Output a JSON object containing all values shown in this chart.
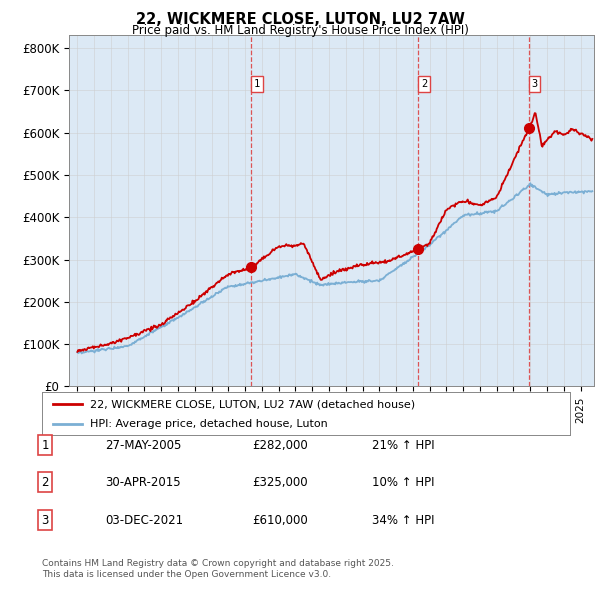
{
  "title": "22, WICKMERE CLOSE, LUTON, LU2 7AW",
  "subtitle": "Price paid vs. HM Land Registry's House Price Index (HPI)",
  "plot_bg_color": "#dce9f5",
  "ylabel_ticks": [
    "£0",
    "£100K",
    "£200K",
    "£300K",
    "£400K",
    "£500K",
    "£600K",
    "£700K",
    "£800K"
  ],
  "ytick_values": [
    0,
    100000,
    200000,
    300000,
    400000,
    500000,
    600000,
    700000,
    800000
  ],
  "ylim": [
    0,
    830000
  ],
  "xlim_start": 1994.5,
  "xlim_end": 2025.8,
  "sale_dates": [
    2005.38,
    2015.33,
    2021.92
  ],
  "sale_prices": [
    282000,
    325000,
    610000
  ],
  "sale_labels": [
    "1",
    "2",
    "3"
  ],
  "legend_entries": [
    "22, WICKMERE CLOSE, LUTON, LU2 7AW (detached house)",
    "HPI: Average price, detached house, Luton"
  ],
  "table_rows": [
    [
      "1",
      "27-MAY-2005",
      "£282,000",
      "21% ↑ HPI"
    ],
    [
      "2",
      "30-APR-2015",
      "£325,000",
      "10% ↑ HPI"
    ],
    [
      "3",
      "03-DEC-2021",
      "£610,000",
      "34% ↑ HPI"
    ]
  ],
  "footer_text": "Contains HM Land Registry data © Crown copyright and database right 2025.\nThis data is licensed under the Open Government Licence v3.0.",
  "red_color": "#cc0000",
  "blue_color": "#7bafd4",
  "grid_color": "#cccccc",
  "dashed_red": "#dd4444"
}
